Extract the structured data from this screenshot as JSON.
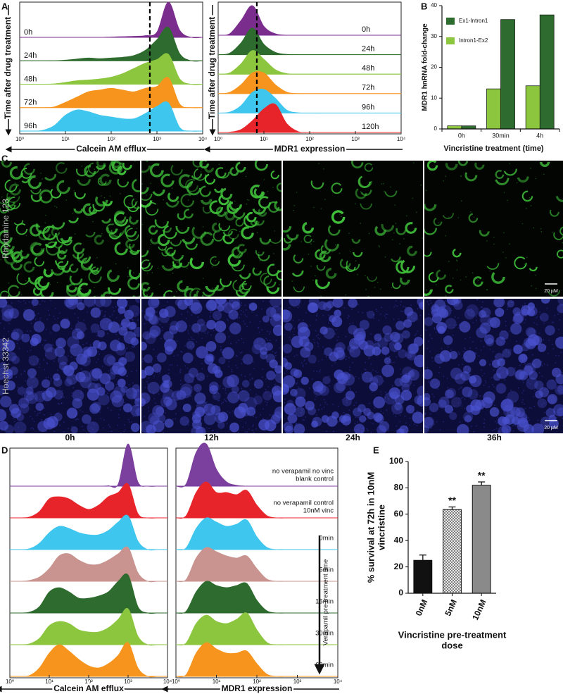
{
  "panel_labels": [
    "A",
    "B",
    "C",
    "D",
    "E"
  ],
  "microscopy": {
    "row_labels": [
      "Rhodamine 123",
      "Hoechst 33342"
    ],
    "column_labels": [
      "0h",
      "12h",
      "24h",
      "36h"
    ],
    "scale_bar": "20 µM"
  },
  "chart_data": [
    {
      "type": "ridgeline",
      "xlabel": "Calcein AM efflux",
      "ylabel": "Time after drug treatment",
      "xscale": "log",
      "xlim": [
        1,
        10000
      ],
      "xticks": [
        {
          "value": 1,
          "label": "10⁰"
        },
        {
          "value": 10,
          "label": "10¹"
        },
        {
          "value": 100,
          "label": "10²"
        },
        {
          "value": 1000,
          "label": "10³"
        },
        {
          "value": 10000,
          "label": "10⁴"
        }
      ],
      "reference_line": 700,
      "legend": "left",
      "x": [
        1,
        1.78,
        3.16,
        5.62,
        10,
        17.8,
        31.6,
        56.2,
        100,
        178,
        316,
        562,
        1000,
        1780,
        3160,
        5620,
        10000
      ],
      "series": [
        {
          "name": "0h",
          "color": "#7b2d8e",
          "values": [
            0,
            0,
            0,
            0,
            0,
            0,
            0,
            0,
            0.01,
            0.02,
            0.03,
            0.05,
            0.15,
            1,
            0.2,
            0,
            0
          ]
        },
        {
          "name": "24h",
          "color": "#2e6b2e",
          "values": [
            0,
            0,
            0,
            0,
            0.02,
            0.05,
            0.08,
            0.06,
            0.08,
            0.1,
            0.15,
            0.3,
            0.6,
            0.95,
            0.2,
            0,
            0
          ]
        },
        {
          "name": "48h",
          "color": "#8cc63f",
          "values": [
            0,
            0,
            0,
            0.01,
            0.05,
            0.1,
            0.12,
            0.15,
            0.2,
            0.3,
            0.45,
            0.6,
            0.7,
            0.85,
            0.15,
            0,
            0
          ]
        },
        {
          "name": "72h",
          "color": "#f7941d",
          "values": [
            0,
            0,
            0,
            0.02,
            0.15,
            0.3,
            0.45,
            0.5,
            0.55,
            0.5,
            0.45,
            0.55,
            0.6,
            0.85,
            0.1,
            0,
            0
          ]
        },
        {
          "name": "96h",
          "color": "#3ec6ee",
          "values": [
            0,
            0,
            0.02,
            0.15,
            0.45,
            0.6,
            0.55,
            0.45,
            0.4,
            0.35,
            0.35,
            0.5,
            0.7,
            0.8,
            0.1,
            0,
            0
          ]
        }
      ]
    },
    {
      "type": "ridgeline",
      "xlabel": "MDR1 expression",
      "ylabel": "Time after drug treatment",
      "xscale": "log",
      "xlim": [
        1,
        10000
      ],
      "xticks": [
        {
          "value": 1,
          "label": "10⁰"
        },
        {
          "value": 10,
          "label": "10¹"
        },
        {
          "value": 100,
          "label": "10²"
        },
        {
          "value": 1000,
          "label": "10³"
        },
        {
          "value": 10000,
          "label": "10⁴"
        }
      ],
      "reference_line": 7,
      "legend": "right",
      "x": [
        1,
        1.78,
        3.16,
        5.62,
        10,
        17.8,
        31.6,
        56.2,
        100,
        178,
        316,
        562,
        1000,
        1780,
        3160,
        5620,
        10000
      ],
      "series": [
        {
          "name": "0h",
          "color": "#7b2d8e",
          "values": [
            0,
            0.05,
            0.5,
            1,
            0.3,
            0.05,
            0,
            0,
            0,
            0,
            0,
            0,
            0,
            0,
            0,
            0,
            0
          ]
        },
        {
          "name": "24h",
          "color": "#2e6b2e",
          "values": [
            0,
            0.05,
            0.4,
            0.9,
            0.35,
            0.08,
            0.01,
            0,
            0,
            0,
            0,
            0,
            0,
            0,
            0,
            0,
            0
          ]
        },
        {
          "name": "48h",
          "color": "#8cc63f",
          "values": [
            0,
            0.04,
            0.35,
            0.8,
            0.5,
            0.15,
            0.02,
            0,
            0,
            0,
            0,
            0,
            0,
            0,
            0,
            0,
            0
          ]
        },
        {
          "name": "72h",
          "color": "#f7941d",
          "values": [
            0,
            0.04,
            0.3,
            0.7,
            0.7,
            0.3,
            0.05,
            0,
            0,
            0,
            0,
            0,
            0,
            0,
            0,
            0,
            0
          ]
        },
        {
          "name": "96h",
          "color": "#3ec6ee",
          "values": [
            0,
            0.03,
            0.25,
            0.7,
            0.8,
            0.5,
            0.1,
            0.01,
            0,
            0,
            0,
            0,
            0,
            0,
            0,
            0,
            0
          ]
        },
        {
          "name": "120h",
          "color": "#e8242b",
          "values": [
            0,
            0.01,
            0.1,
            0.4,
            0.8,
            0.95,
            0.3,
            0.03,
            0,
            0,
            0,
            0,
            0,
            0,
            0,
            0,
            0
          ]
        }
      ]
    },
    {
      "type": "bar",
      "xlabel": "Vincristine treatment (time)",
      "ylabel": "MDR1 hnRNA fold-change",
      "categories": [
        "0h",
        "30min",
        "4h"
      ],
      "ylim": [
        0,
        40
      ],
      "yticks": [
        0,
        10,
        20,
        30,
        40
      ],
      "legend": "upper left",
      "series": [
        {
          "name": "Ex1-Intron1",
          "color": "#2e6b2e",
          "values": [
            1,
            35.5,
            37
          ]
        },
        {
          "name": "Intron1-Ex2",
          "color": "#8cc63f",
          "values": [
            1,
            13,
            14
          ]
        }
      ]
    },
    {
      "type": "ridgeline",
      "xlabel": "Calcein AM efflux",
      "xscale": "log",
      "xlim": [
        1,
        10000
      ],
      "xticks": [
        {
          "value": 1,
          "label": "10⁰"
        },
        {
          "value": 10,
          "label": "10¹"
        },
        {
          "value": 100,
          "label": "10²"
        },
        {
          "value": 1000,
          "label": "10³"
        },
        {
          "value": 10000,
          "label": "10⁴"
        }
      ],
      "x": [
        1,
        1.78,
        3.16,
        5.62,
        10,
        17.8,
        31.6,
        56.2,
        100,
        178,
        316,
        562,
        1000,
        1780,
        3160,
        5620,
        10000
      ],
      "series": [
        {
          "color": "#7b3f9e",
          "values": [
            0,
            0,
            0,
            0,
            0,
            0,
            0,
            0,
            0,
            0,
            0.01,
            0.05,
            1,
            0.1,
            0,
            0,
            0
          ]
        },
        {
          "color": "#e8242b",
          "values": [
            0,
            0,
            0.02,
            0.15,
            0.45,
            0.5,
            0.45,
            0.3,
            0.2,
            0.3,
            0.5,
            0.6,
            0.8,
            0.1,
            0,
            0,
            0
          ]
        },
        {
          "color": "#3ec6ee",
          "values": [
            0,
            0,
            0.02,
            0.15,
            0.4,
            0.55,
            0.5,
            0.4,
            0.35,
            0.35,
            0.45,
            0.65,
            0.8,
            0.2,
            0,
            0,
            0
          ]
        },
        {
          "color": "#c9948f",
          "values": [
            0,
            0,
            0.02,
            0.1,
            0.3,
            0.6,
            0.65,
            0.5,
            0.4,
            0.4,
            0.5,
            0.65,
            0.8,
            0.2,
            0,
            0,
            0
          ]
        },
        {
          "color": "#2e6b2e",
          "values": [
            0,
            0,
            0.02,
            0.15,
            0.5,
            0.6,
            0.5,
            0.35,
            0.35,
            0.4,
            0.5,
            0.75,
            0.9,
            0.15,
            0,
            0,
            0
          ]
        },
        {
          "color": "#8cc63f",
          "values": [
            0,
            0,
            0.02,
            0.15,
            0.45,
            0.55,
            0.5,
            0.35,
            0.3,
            0.3,
            0.4,
            0.6,
            0.85,
            0.2,
            0,
            0,
            0
          ]
        },
        {
          "color": "#f7941d",
          "values": [
            0,
            0,
            0.02,
            0.2,
            0.55,
            0.75,
            0.6,
            0.4,
            0.25,
            0.2,
            0.3,
            0.5,
            0.8,
            0.2,
            0,
            0,
            0
          ]
        }
      ]
    },
    {
      "type": "ridgeline",
      "xlabel": "MDR1 expression",
      "xscale": "log",
      "xlim": [
        1,
        10000
      ],
      "xticks": [
        {
          "value": 1,
          "label": "10⁰"
        },
        {
          "value": 10,
          "label": "10¹"
        },
        {
          "value": 100,
          "label": "10²"
        },
        {
          "value": 1000,
          "label": "10³"
        },
        {
          "value": 10000,
          "label": "10⁴"
        }
      ],
      "annotation": "Verapamil pre-treatment time",
      "legend": "right",
      "x": [
        1,
        1.78,
        3.16,
        5.62,
        10,
        17.8,
        31.6,
        56.2,
        100,
        178,
        316,
        562,
        1000,
        1780,
        3160,
        5620,
        10000
      ],
      "series": [
        {
          "name": "no verapamil no vinc\nblank control",
          "color": "#7b3f9e",
          "values": [
            0,
            0.05,
            0.8,
            1,
            0.4,
            0.1,
            0.02,
            0,
            0,
            0,
            0,
            0,
            0,
            0,
            0,
            0,
            0
          ]
        },
        {
          "name": "no verapamil control\n10nM vinc",
          "color": "#e8242b",
          "values": [
            0,
            0.05,
            0.6,
            0.85,
            0.6,
            0.6,
            0.55,
            0.65,
            0.3,
            0.05,
            0,
            0,
            0,
            0,
            0,
            0,
            0
          ]
        },
        {
          "name": "0min",
          "color": "#3ec6ee",
          "values": [
            0,
            0.04,
            0.5,
            0.75,
            0.65,
            0.55,
            0.6,
            0.7,
            0.3,
            0.05,
            0,
            0,
            0,
            0,
            0,
            0,
            0
          ]
        },
        {
          "name": "5min",
          "color": "#c9948f",
          "values": [
            0,
            0.04,
            0.55,
            0.8,
            0.7,
            0.6,
            0.55,
            0.6,
            0.3,
            0.05,
            0,
            0,
            0,
            0,
            0,
            0,
            0
          ]
        },
        {
          "name": "15min",
          "color": "#2e6b2e",
          "values": [
            0,
            0.04,
            0.5,
            0.75,
            0.65,
            0.6,
            0.65,
            0.7,
            0.3,
            0.05,
            0,
            0,
            0,
            0,
            0,
            0,
            0
          ]
        },
        {
          "name": "30min",
          "color": "#8cc63f",
          "values": [
            0,
            0.04,
            0.5,
            0.7,
            0.55,
            0.5,
            0.6,
            0.75,
            0.35,
            0.05,
            0,
            0,
            0,
            0,
            0,
            0,
            0
          ]
        },
        {
          "name": "60min",
          "color": "#f7941d",
          "values": [
            0,
            0.04,
            0.55,
            0.8,
            0.65,
            0.55,
            0.55,
            0.6,
            0.3,
            0.05,
            0,
            0,
            0,
            0,
            0,
            0,
            0
          ]
        }
      ]
    },
    {
      "type": "bar",
      "xlabel": "Vincristine pre-treatment\ndose",
      "ylabel": "% survival at 72h in 10nM\nvincristine",
      "categories": [
        "0nM",
        "5nM",
        "10nM"
      ],
      "values": [
        25,
        63.5,
        82
      ],
      "errors": [
        4,
        2,
        2.5
      ],
      "annotations": [
        null,
        "**",
        "**"
      ],
      "colors": [
        "#111111",
        "#ffffff",
        "#8a8a8a"
      ],
      "hatches": [
        false,
        true,
        false
      ],
      "ylim": [
        0,
        100
      ],
      "yticks": [
        0,
        20,
        40,
        60,
        80,
        100
      ]
    }
  ]
}
